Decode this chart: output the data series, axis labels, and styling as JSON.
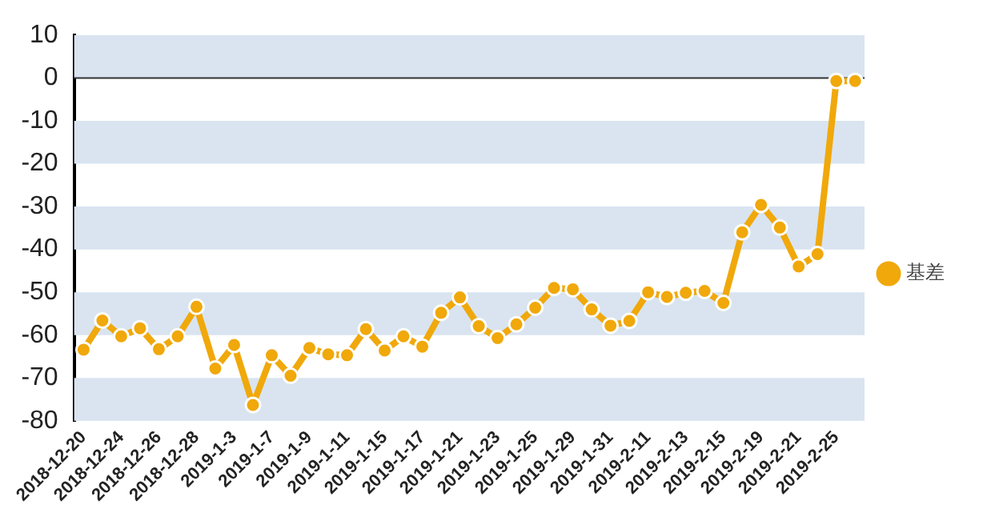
{
  "chart_data": {
    "type": "line",
    "categories": [
      "2018-12-20",
      null,
      "2018-12-24",
      null,
      "2018-12-26",
      null,
      "2018-12-28",
      null,
      "2019-1-3",
      null,
      "2019-1-7",
      null,
      "2019-1-9",
      null,
      "2019-1-11",
      null,
      "2019-1-15",
      null,
      "2019-1-17",
      null,
      "2019-1-21",
      null,
      "2019-1-23",
      null,
      "2019-1-25",
      null,
      "2019-1-29",
      null,
      "2019-1-31",
      null,
      "2019-2-11",
      null,
      "2019-2-13",
      null,
      "2019-2-15",
      null,
      "2019-2-19",
      null,
      "2019-2-21",
      null,
      "2019-2-25",
      null
    ],
    "series": [
      {
        "name": "基差",
        "color": "#f0a80a",
        "values": [
          -63.4,
          -56.6,
          -60.3,
          -58.4,
          -63.3,
          -60.3,
          -53.4,
          -67.8,
          -62.3,
          -76.3,
          -64.7,
          -69.5,
          -63,
          -64.5,
          -64.7,
          -58.6,
          -63.6,
          -60.3,
          -62.7,
          -54.8,
          -51.2,
          -57.9,
          -60.7,
          -57.5,
          -53.6,
          -49,
          -49.3,
          -54,
          -57.8,
          -56.7,
          -50,
          -51.1,
          -50.1,
          -49.7,
          -52.5,
          -36,
          -29.6,
          -34.9,
          -44,
          -41.1,
          -0.7,
          -0.7
        ]
      }
    ],
    "ylim": [
      -80,
      10
    ],
    "yticks": [
      10,
      0,
      -10,
      -20,
      -30,
      -40,
      -50,
      -60,
      -70,
      -80
    ],
    "bands": [
      {
        "axis": "y",
        "from": 0,
        "to": 10,
        "color": "#d9e4f0"
      },
      {
        "axis": "y",
        "from": -20,
        "to": -10,
        "color": "#d9e4f0"
      },
      {
        "axis": "y",
        "from": -40,
        "to": -30,
        "color": "#d9e4f0"
      },
      {
        "axis": "y",
        "from": -60,
        "to": -50,
        "color": "#d9e4f0"
      },
      {
        "axis": "y",
        "from": -80,
        "to": -70,
        "color": "#d9e4f0"
      }
    ],
    "legend": "right",
    "marker": "circle",
    "line_style": "solid",
    "ref_lines": [
      {
        "axis": "y",
        "value": 0,
        "color": "#333333"
      }
    ]
  }
}
